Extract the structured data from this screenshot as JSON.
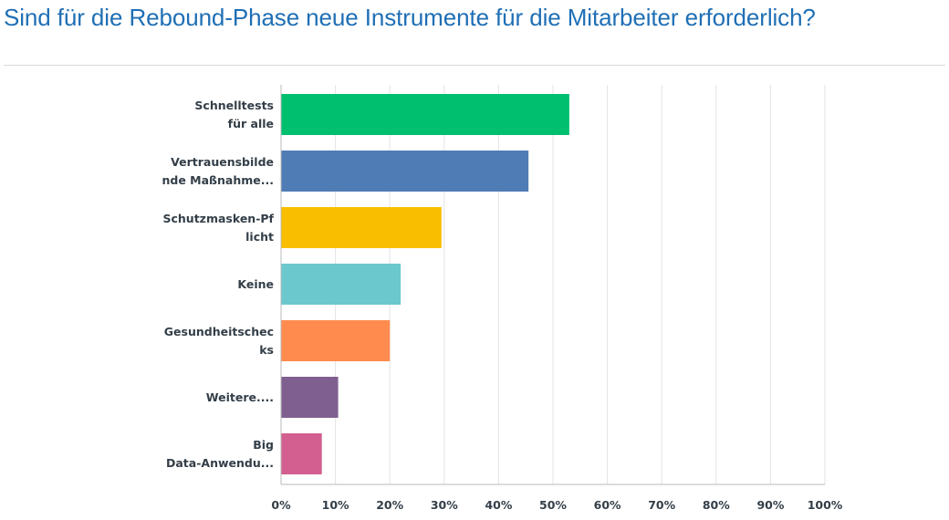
{
  "chart_data": {
    "type": "bar",
    "orientation": "horizontal",
    "title": "Sind für die Rebound-Phase neue Instrumente für die Mitarbeiter erforderlich?",
    "categories": [
      [
        "Schnelltests",
        "für alle"
      ],
      [
        "Vertrauensbilde",
        "nde Maßnahme..."
      ],
      [
        "Schutzmasken-Pf",
        "licht"
      ],
      [
        "Keine"
      ],
      [
        "Gesundheitschec",
        "ks"
      ],
      [
        "Weitere...."
      ],
      [
        "Big",
        "Data-Anwendu..."
      ]
    ],
    "values": [
      53,
      45.5,
      29.5,
      22,
      20,
      10.5,
      7.5
    ],
    "colors": [
      "#00bf6f",
      "#507cb6",
      "#f9be00",
      "#6bc8cd",
      "#ff8b4f",
      "#7f5f90",
      "#d25f90"
    ],
    "xlim": [
      0,
      100
    ],
    "xticks": [
      "0%",
      "10%",
      "20%",
      "30%",
      "40%",
      "50%",
      "60%",
      "70%",
      "80%",
      "90%",
      "100%"
    ],
    "grid": true,
    "unit": "%"
  }
}
